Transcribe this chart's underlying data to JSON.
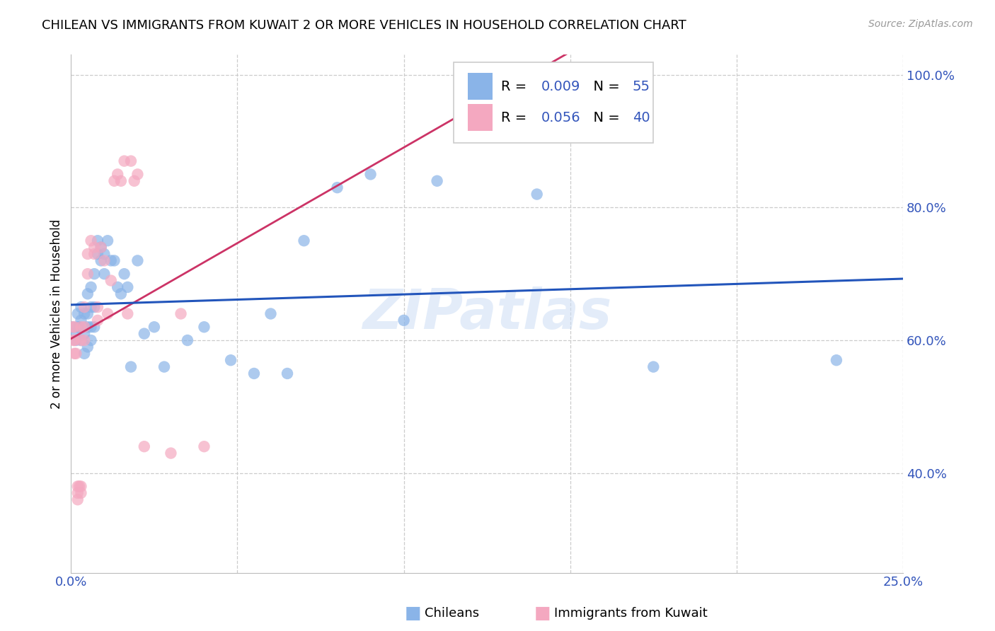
{
  "title": "CHILEAN VS IMMIGRANTS FROM KUWAIT 2 OR MORE VEHICLES IN HOUSEHOLD CORRELATION CHART",
  "source": "Source: ZipAtlas.com",
  "ylabel": "2 or more Vehicles in Household",
  "xlim": [
    0.0,
    0.25
  ],
  "ylim": [
    0.25,
    1.03
  ],
  "xticks": [
    0.0,
    0.05,
    0.1,
    0.15,
    0.2,
    0.25
  ],
  "xticklabels": [
    "0.0%",
    "",
    "",
    "",
    "",
    "25.0%"
  ],
  "yticks": [
    0.4,
    0.6,
    0.8,
    1.0
  ],
  "yticklabels": [
    "40.0%",
    "60.0%",
    "80.0%",
    "100.0%"
  ],
  "color_blue": "#8ab4e8",
  "color_pink": "#f4a8c0",
  "trendline_blue": "#2255bb",
  "trendline_pink": "#cc3366",
  "watermark": "ZIPatlas",
  "background_color": "#ffffff",
  "grid_color": "#cccccc",
  "chileans_x": [
    0.0005,
    0.001,
    0.0015,
    0.002,
    0.002,
    0.0025,
    0.003,
    0.003,
    0.003,
    0.004,
    0.004,
    0.004,
    0.005,
    0.005,
    0.005,
    0.005,
    0.006,
    0.006,
    0.006,
    0.006,
    0.007,
    0.007,
    0.007,
    0.008,
    0.008,
    0.009,
    0.009,
    0.01,
    0.01,
    0.011,
    0.012,
    0.013,
    0.014,
    0.015,
    0.016,
    0.017,
    0.018,
    0.02,
    0.022,
    0.025,
    0.028,
    0.035,
    0.04,
    0.048,
    0.055,
    0.06,
    0.065,
    0.07,
    0.08,
    0.09,
    0.1,
    0.11,
    0.14,
    0.175,
    0.23
  ],
  "chileans_y": [
    0.62,
    0.61,
    0.6,
    0.62,
    0.64,
    0.62,
    0.6,
    0.63,
    0.65,
    0.58,
    0.61,
    0.64,
    0.59,
    0.62,
    0.64,
    0.67,
    0.6,
    0.62,
    0.65,
    0.68,
    0.62,
    0.65,
    0.7,
    0.73,
    0.75,
    0.72,
    0.74,
    0.73,
    0.7,
    0.75,
    0.72,
    0.72,
    0.68,
    0.67,
    0.7,
    0.68,
    0.56,
    0.72,
    0.61,
    0.62,
    0.56,
    0.6,
    0.62,
    0.57,
    0.55,
    0.64,
    0.55,
    0.75,
    0.83,
    0.85,
    0.63,
    0.84,
    0.82,
    0.56,
    0.57
  ],
  "kuwait_x": [
    0.0005,
    0.0008,
    0.001,
    0.001,
    0.001,
    0.0015,
    0.002,
    0.002,
    0.002,
    0.0025,
    0.003,
    0.003,
    0.003,
    0.003,
    0.004,
    0.004,
    0.004,
    0.005,
    0.005,
    0.006,
    0.007,
    0.007,
    0.008,
    0.008,
    0.009,
    0.01,
    0.011,
    0.012,
    0.013,
    0.014,
    0.015,
    0.016,
    0.017,
    0.018,
    0.019,
    0.02,
    0.022,
    0.03,
    0.033,
    0.04
  ],
  "kuwait_y": [
    0.62,
    0.6,
    0.62,
    0.6,
    0.58,
    0.58,
    0.36,
    0.38,
    0.37,
    0.38,
    0.62,
    0.6,
    0.38,
    0.37,
    0.62,
    0.6,
    0.65,
    0.73,
    0.7,
    0.75,
    0.73,
    0.74,
    0.65,
    0.63,
    0.74,
    0.72,
    0.64,
    0.69,
    0.84,
    0.85,
    0.84,
    0.87,
    0.64,
    0.87,
    0.84,
    0.85,
    0.44,
    0.43,
    0.64,
    0.44
  ],
  "r_blue": "0.009",
  "n_blue": "55",
  "r_pink": "0.056",
  "n_pink": "40"
}
